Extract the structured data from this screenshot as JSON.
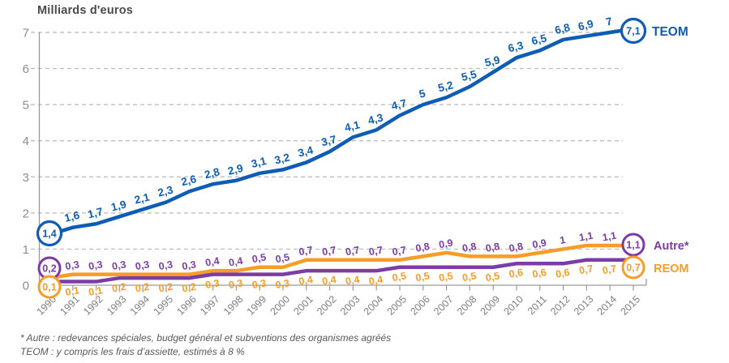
{
  "title": "Milliards d'euros",
  "footnotes": {
    "line1": "* Autre : redevances spéciales, budget général et subventions des organismes agréés",
    "line2": "TEOM : y compris les frais d’assiette, estimés à 8 %"
  },
  "colors": {
    "teom_blue": "#0f5cb4",
    "reom_orange": "#f59d28",
    "autre_purple": "#7b3ca5",
    "grid": "#b8b8b8",
    "axis": "#9a9a9a",
    "tick_label": "#7f7f7f",
    "y_label": "#8c8c8c",
    "title_text": "#4a4a4a",
    "footnote_text": "#585858"
  },
  "chart_data": {
    "type": "line",
    "title": "Milliards d'euros",
    "x_categories": [
      "1990",
      "1991",
      "1992",
      "1993",
      "1994",
      "1995",
      "1996",
      "1997",
      "1998",
      "1999",
      "2000",
      "2001",
      "2002",
      "2003",
      "2004",
      "2005",
      "2006",
      "2007",
      "2008",
      "2009",
      "2010",
      "2011",
      "2012",
      "2013",
      "2014",
      "2015"
    ],
    "ylim": [
      0,
      7
    ],
    "y_ticks": [
      0,
      1,
      2,
      3,
      4,
      5,
      6,
      7
    ],
    "grid": "horizontal-dashed",
    "legend_position": "right-of-line-ends",
    "decimal_separator": ",",
    "series": [
      {
        "name": "TEOM",
        "line_color": "#0f5cb4",
        "label_color": "#0f5cb4",
        "values": [
          1.4,
          1.6,
          1.7,
          1.9,
          2.1,
          2.3,
          2.6,
          2.8,
          2.9,
          3.1,
          3.2,
          3.4,
          3.7,
          4.1,
          4.3,
          4.7,
          5,
          5.2,
          5.5,
          5.9,
          6.3,
          6.5,
          6.8,
          6.9,
          7,
          7.1
        ]
      },
      {
        "name": "Autre*",
        "line_color": "#f59d28",
        "label_color": "#7b3ca5",
        "values": [
          0.2,
          0.3,
          0.3,
          0.3,
          0.3,
          0.3,
          0.3,
          0.4,
          0.4,
          0.5,
          0.5,
          0.7,
          0.7,
          0.7,
          0.7,
          0.7,
          0.8,
          0.9,
          0.8,
          0.8,
          0.8,
          0.9,
          1,
          1.1,
          1.1,
          1.1
        ]
      },
      {
        "name": "REOM",
        "line_color": "#7b3ca5",
        "label_color": "#f59d28",
        "values": [
          0.1,
          0.1,
          0.1,
          0.2,
          0.2,
          0.2,
          0.2,
          0.3,
          0.3,
          0.3,
          0.3,
          0.4,
          0.4,
          0.4,
          0.4,
          0.5,
          0.5,
          0.5,
          0.5,
          0.5,
          0.6,
          0.6,
          0.6,
          0.7,
          0.7,
          0.7
        ]
      }
    ]
  }
}
